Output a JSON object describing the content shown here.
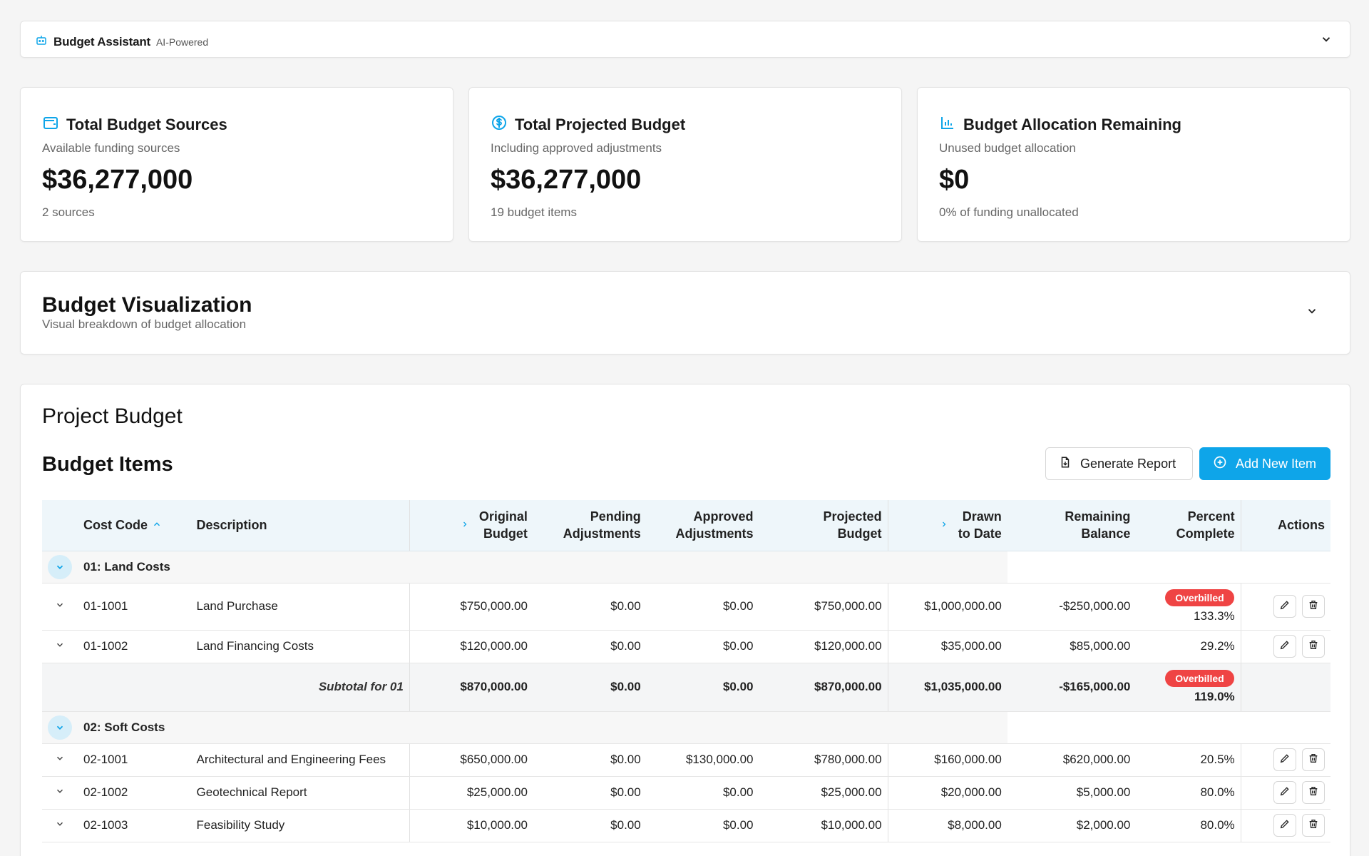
{
  "assistant": {
    "title": "Budget Assistant",
    "subtitle": "AI-Powered",
    "icon": "robot-icon"
  },
  "stats": [
    {
      "title": "Total Budget Sources",
      "description": "Available funding sources",
      "value": "$36,277,000",
      "note": "2 sources",
      "icon": "wallet-icon"
    },
    {
      "title": "Total Projected Budget",
      "description": "Including approved adjustments",
      "value": "$36,277,000",
      "note": "19 budget items",
      "icon": "dollar-circle-icon"
    },
    {
      "title": "Budget Allocation Remaining",
      "description": "Unused budget allocation",
      "value": "$0",
      "note": "0% of funding unallocated",
      "icon": "bar-chart-icon"
    }
  ],
  "visualization": {
    "title": "Budget Visualization",
    "subtitle": "Visual breakdown of budget allocation"
  },
  "project": {
    "title": "Project Budget",
    "section_title": "Budget Items",
    "generate_report_label": "Generate Report",
    "add_item_label": "Add New Item"
  },
  "table": {
    "headers": {
      "cost_code": "Cost Code",
      "description": "Description",
      "original_1": "Original",
      "original_2": "Budget",
      "pending_1": "Pending",
      "pending_2": "Adjustments",
      "approved_1": "Approved",
      "approved_2": "Adjustments",
      "projected_1": "Projected",
      "projected_2": "Budget",
      "drawn_1": "Drawn",
      "drawn_2": "to Date",
      "remaining_1": "Remaining",
      "remaining_2": "Balance",
      "percent_1": "Percent",
      "percent_2": "Complete",
      "actions": "Actions"
    },
    "groups": [
      {
        "label": "01: Land Costs",
        "rows": [
          {
            "code": "01-1001",
            "description": "Land Purchase",
            "original": "$750,000.00",
            "pending": "$0.00",
            "approved": "$0.00",
            "projected": "$750,000.00",
            "drawn": "$1,000,000.00",
            "remaining": "-$250,000.00",
            "percent": "133.3%",
            "badge": "Overbilled"
          },
          {
            "code": "01-1002",
            "description": "Land Financing Costs",
            "original": "$120,000.00",
            "pending": "$0.00",
            "approved": "$0.00",
            "projected": "$120,000.00",
            "drawn": "$35,000.00",
            "remaining": "$85,000.00",
            "percent": "29.2%"
          }
        ],
        "subtotal": {
          "label": "Subtotal for 01",
          "original": "$870,000.00",
          "pending": "$0.00",
          "approved": "$0.00",
          "projected": "$870,000.00",
          "drawn": "$1,035,000.00",
          "remaining": "-$165,000.00",
          "percent": "119.0%",
          "badge": "Overbilled"
        }
      },
      {
        "label": "02: Soft Costs",
        "rows": [
          {
            "code": "02-1001",
            "description": "Architectural and Engineering Fees",
            "original": "$650,000.00",
            "pending": "$0.00",
            "approved": "$130,000.00",
            "projected": "$780,000.00",
            "drawn": "$160,000.00",
            "remaining": "$620,000.00",
            "percent": "20.5%"
          },
          {
            "code": "02-1002",
            "description": "Geotechnical Report",
            "original": "$25,000.00",
            "pending": "$0.00",
            "approved": "$0.00",
            "projected": "$25,000.00",
            "drawn": "$20,000.00",
            "remaining": "$5,000.00",
            "percent": "80.0%"
          },
          {
            "code": "02-1003",
            "description": "Feasibility Study",
            "original": "$10,000.00",
            "pending": "$0.00",
            "approved": "$0.00",
            "projected": "$10,000.00",
            "drawn": "$8,000.00",
            "remaining": "$2,000.00",
            "percent": "80.0%"
          }
        ]
      }
    ]
  },
  "colors": {
    "accent": "#0ea5e9",
    "danger": "#ef4444",
    "header_bg": "#eef6fa"
  }
}
